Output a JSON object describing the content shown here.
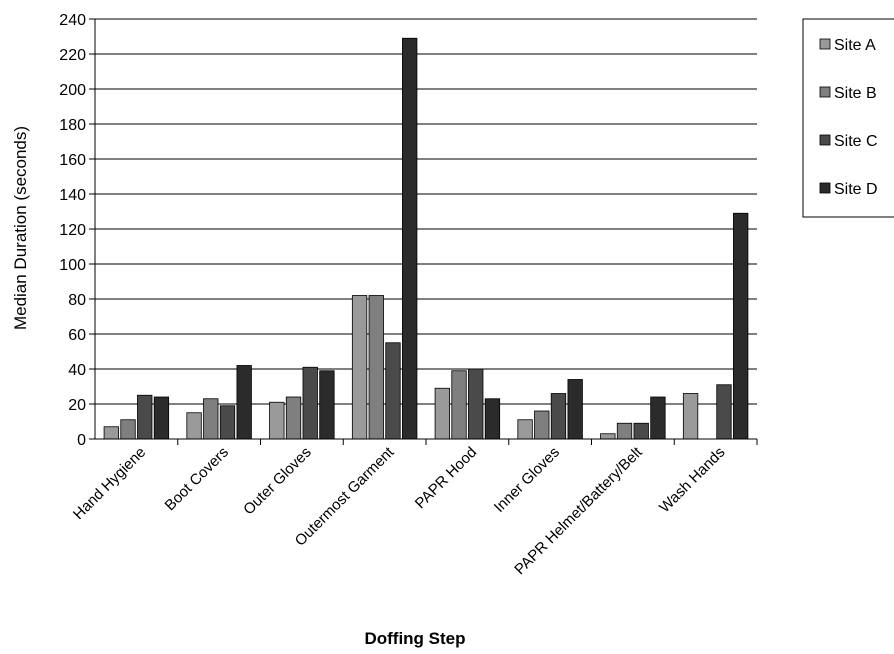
{
  "chart_data": {
    "type": "bar",
    "title": "",
    "xlabel": "Doffing Step",
    "ylabel": "Median Duration  (seconds)",
    "ylim": [
      0,
      240
    ],
    "yticks": [
      0,
      20,
      40,
      60,
      80,
      100,
      120,
      140,
      160,
      180,
      200,
      220,
      240
    ],
    "grid": true,
    "legend_position": "top-right",
    "categories": [
      "Hand Hygiene",
      "Boot Covers",
      "Outer Gloves",
      "Outermost Garment",
      "PAPR Hood",
      "Inner Gloves",
      "PAPR Helmet/Battery/Belt",
      "Wash Hands"
    ],
    "series": [
      {
        "name": "Site A",
        "color": "#9a9a9a",
        "values": [
          7,
          15,
          21,
          82,
          29,
          11,
          3,
          26
        ]
      },
      {
        "name": "Site B",
        "color": "#7f7f7f",
        "values": [
          11,
          23,
          24,
          82,
          39,
          16,
          9,
          null
        ]
      },
      {
        "name": "Site C",
        "color": "#4a4a4a",
        "values": [
          25,
          19,
          41,
          55,
          40,
          26,
          9,
          31
        ]
      },
      {
        "name": "Site D",
        "color": "#2b2b2b",
        "values": [
          24,
          42,
          39,
          229,
          23,
          34,
          24,
          129
        ]
      }
    ]
  }
}
